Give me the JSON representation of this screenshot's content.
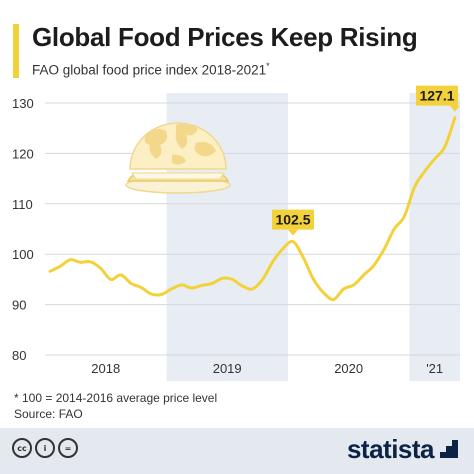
{
  "header": {
    "title": "Global Food Prices Keep Rising",
    "subtitle": "FAO global food price index 2018-2021",
    "subtitle_mark": "*"
  },
  "colors": {
    "accent": "#f2d13a",
    "line": "#f2d13a",
    "shade": "#e8edf4",
    "grid": "#d5d8dc",
    "text": "#1c1c1c",
    "brand": "#0c2246"
  },
  "icon": "burger-globe-icon",
  "chart_data": {
    "type": "line",
    "ylim": [
      80,
      130
    ],
    "yticks": [
      80,
      90,
      100,
      110,
      120,
      130
    ],
    "grid": true,
    "year_labels": [
      "2018",
      "2019",
      "2020",
      "'21"
    ],
    "shaded_years": [
      "2019",
      "2021"
    ],
    "x": [
      "2018-01",
      "2018-02",
      "2018-03",
      "2018-04",
      "2018-05",
      "2018-06",
      "2018-07",
      "2018-08",
      "2018-09",
      "2018-10",
      "2018-11",
      "2018-12",
      "2019-01",
      "2019-02",
      "2019-03",
      "2019-04",
      "2019-05",
      "2019-06",
      "2019-07",
      "2019-08",
      "2019-09",
      "2019-10",
      "2019-11",
      "2019-12",
      "2020-01",
      "2020-02",
      "2020-03",
      "2020-04",
      "2020-05",
      "2020-06",
      "2020-07",
      "2020-08",
      "2020-09",
      "2020-10",
      "2020-11",
      "2020-12",
      "2021-01",
      "2021-02",
      "2021-03",
      "2021-04",
      "2021-05"
    ],
    "values": [
      96.6,
      97.6,
      98.9,
      98.4,
      98.5,
      97.2,
      95.0,
      95.9,
      94.2,
      93.4,
      92.1,
      92.0,
      93.1,
      93.9,
      93.3,
      93.8,
      94.2,
      95.2,
      95.0,
      93.7,
      93.1,
      95.0,
      98.5,
      101.1,
      102.5,
      99.4,
      95.1,
      92.4,
      91.0,
      93.1,
      93.9,
      95.9,
      97.8,
      101.0,
      105.0,
      107.5,
      113.3,
      116.4,
      118.9,
      121.3,
      127.1
    ],
    "annotations": [
      {
        "x": "2020-01",
        "label": "102.5"
      },
      {
        "x": "2021-05",
        "label": "127.1"
      }
    ]
  },
  "footer": {
    "note": "* 100 = 2014-2016 average price level",
    "source": "Source: FAO",
    "license_icons": [
      "cc-icon",
      "by-icon",
      "nd-icon"
    ],
    "license_text": [
      "cc",
      "i",
      "="
    ],
    "brand": "statista"
  }
}
